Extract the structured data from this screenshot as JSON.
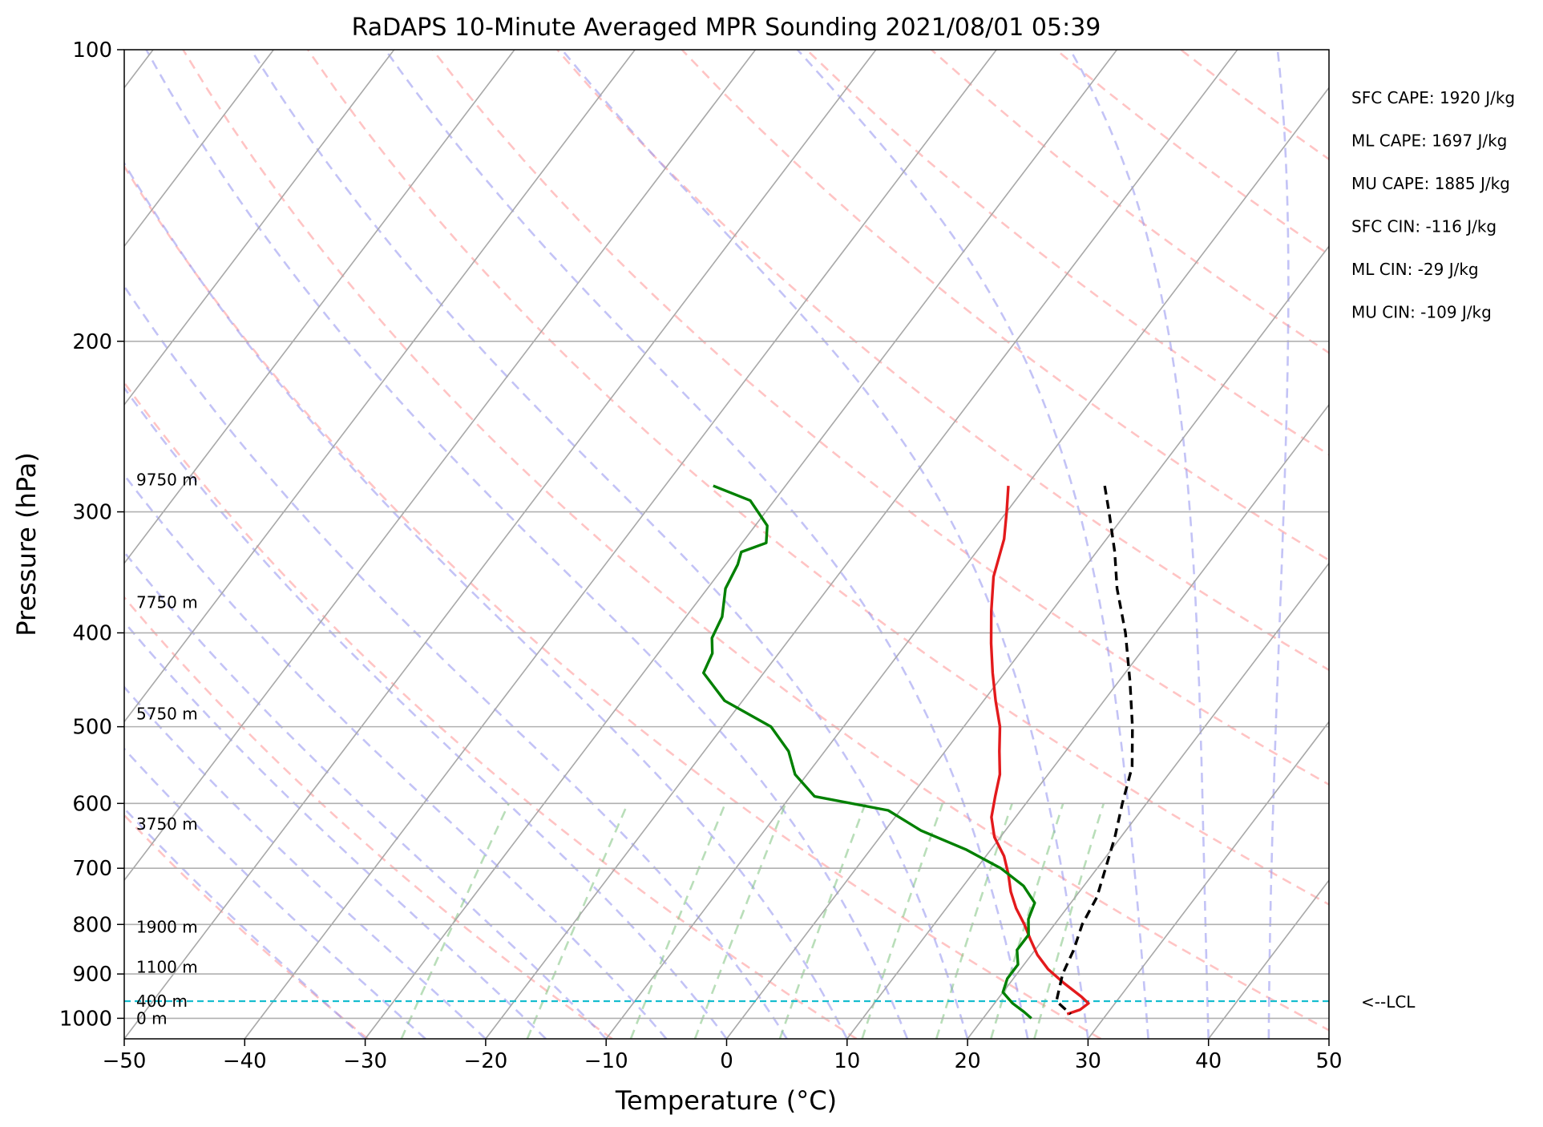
{
  "chart_data": {
    "type": "line",
    "title": "RaDAPS 10-Minute Averaged MPR Sounding 2021/08/01 05:39",
    "xlabel": "Temperature (°C)",
    "ylabel": "Pressure (hPa)",
    "xlim": [
      -50,
      50
    ],
    "ylim": [
      1050,
      100
    ],
    "y_scale": "log",
    "grid": true,
    "x_ticks": [
      -50,
      -40,
      -30,
      -20,
      -10,
      0,
      10,
      20,
      30,
      40,
      50
    ],
    "x_tick_labels": [
      "−50",
      "−40",
      "−30",
      "−20",
      "−10",
      "0",
      "10",
      "20",
      "30",
      "40",
      "50"
    ],
    "y_ticks": [
      100,
      200,
      300,
      400,
      500,
      600,
      700,
      800,
      900,
      1000
    ],
    "y_tick_labels": [
      "100",
      "200",
      "300",
      "400",
      "500",
      "600",
      "700",
      "800",
      "900",
      "1000"
    ],
    "height_labels": [
      {
        "text": "9750 m",
        "p": 278
      },
      {
        "text": "7750 m",
        "p": 372
      },
      {
        "text": "5750 m",
        "p": 485
      },
      {
        "text": "3750 m",
        "p": 630
      },
      {
        "text": "1900 m",
        "p": 805
      },
      {
        "text": "1100 m",
        "p": 885
      },
      {
        "text": "400 m",
        "p": 960
      },
      {
        "text": "0 m",
        "p": 1000
      }
    ],
    "indices": [
      "SFC CAPE: 1920 J/kg",
      "ML CAPE: 1697 J/kg",
      "MU CAPE: 1885 J/kg",
      "SFC CIN: -116 J/kg",
      "ML CIN: -29 J/kg",
      "MU CIN: -109 J/kg"
    ],
    "lcl": {
      "label": "<--LCL",
      "p": 960,
      "color": "#17becf"
    },
    "series": [
      {
        "color": "#e31a1c",
        "points": [
          [
            282,
            -11.5
          ],
          [
            300,
            -10
          ],
          [
            320,
            -8.5
          ],
          [
            350,
            -7
          ],
          [
            380,
            -5
          ],
          [
            410,
            -3
          ],
          [
            440,
            -1
          ],
          [
            470,
            1
          ],
          [
            500,
            3
          ],
          [
            530,
            4.5
          ],
          [
            560,
            6
          ],
          [
            590,
            7
          ],
          [
            620,
            8
          ],
          [
            650,
            9.5
          ],
          [
            680,
            11.5
          ],
          [
            710,
            13
          ],
          [
            740,
            14.3
          ],
          [
            770,
            15.8
          ],
          [
            800,
            17.5
          ],
          [
            830,
            19
          ],
          [
            860,
            20.5
          ],
          [
            890,
            22.3
          ],
          [
            920,
            24.5
          ],
          [
            950,
            26.8
          ],
          [
            965,
            27.8
          ],
          [
            980,
            27.5
          ],
          [
            990,
            26.7
          ]
        ]
      },
      {
        "color": "#008000",
        "points": [
          [
            282,
            -36
          ],
          [
            292,
            -32
          ],
          [
            310,
            -29
          ],
          [
            323,
            -28
          ],
          [
            330,
            -29.5
          ],
          [
            340,
            -29
          ],
          [
            360,
            -28.5
          ],
          [
            385,
            -27
          ],
          [
            405,
            -26.5
          ],
          [
            420,
            -25.5
          ],
          [
            440,
            -25
          ],
          [
            470,
            -21.5
          ],
          [
            500,
            -16
          ],
          [
            530,
            -13
          ],
          [
            560,
            -11
          ],
          [
            590,
            -8
          ],
          [
            610,
            -1
          ],
          [
            640,
            3
          ],
          [
            670,
            8
          ],
          [
            700,
            12
          ],
          [
            730,
            15
          ],
          [
            760,
            17
          ],
          [
            790,
            17.5
          ],
          [
            820,
            18.5
          ],
          [
            850,
            18.5
          ],
          [
            880,
            19.5
          ],
          [
            910,
            19.5
          ],
          [
            940,
            20
          ],
          [
            965,
            21.5
          ],
          [
            985,
            23
          ],
          [
            1000,
            24
          ]
        ]
      },
      {
        "color": "#000000",
        "dash": "dashed",
        "points": [
          [
            282,
            -3.5
          ],
          [
            300,
            -1.5
          ],
          [
            330,
            1.5
          ],
          [
            360,
            4
          ],
          [
            400,
            7.5
          ],
          [
            450,
            11
          ],
          [
            500,
            14
          ],
          [
            550,
            16.5
          ],
          [
            600,
            18
          ],
          [
            650,
            19.5
          ],
          [
            700,
            20.7
          ],
          [
            750,
            21.8
          ],
          [
            800,
            22.3
          ],
          [
            850,
            23.2
          ],
          [
            900,
            23.8
          ],
          [
            950,
            24.8
          ],
          [
            960,
            25
          ],
          [
            975,
            26
          ],
          [
            990,
            27
          ]
        ]
      }
    ]
  }
}
